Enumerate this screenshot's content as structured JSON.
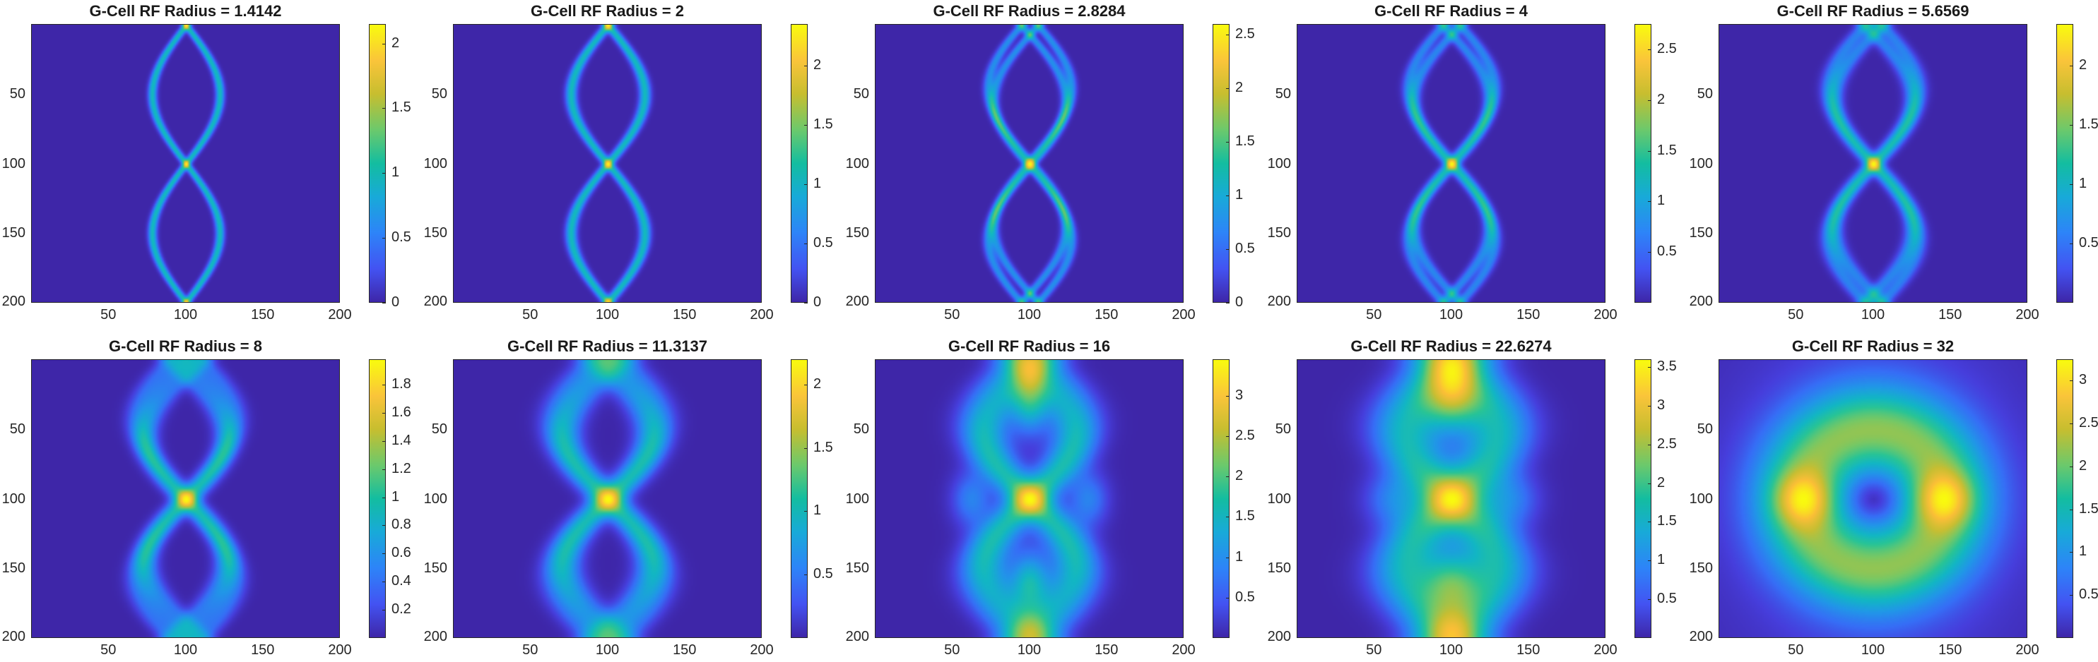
{
  "chart_data": [
    {
      "type": "heatmap",
      "title": "G-Cell RF Radius = 1.4142",
      "xticks": [
        "50",
        "100",
        "150",
        "200"
      ],
      "yticks": [
        "50",
        "100",
        "150",
        "200"
      ],
      "xlim": [
        0,
        200
      ],
      "ylim": [
        0,
        200
      ],
      "y_reversed": true,
      "colormap": "parula",
      "colorbar_ticks": [
        "0",
        "0.5",
        "1",
        "1.5",
        "2"
      ],
      "clim": [
        0,
        2.15
      ],
      "structure": "two-crossing-wave",
      "nwaves": 1,
      "amplitude": 22,
      "blur": 2.0
    },
    {
      "type": "heatmap",
      "title": "G-Cell RF Radius = 2",
      "xticks": [
        "50",
        "100",
        "150",
        "200"
      ],
      "yticks": [
        "50",
        "100",
        "150",
        "200"
      ],
      "xlim": [
        0,
        200
      ],
      "ylim": [
        0,
        200
      ],
      "y_reversed": true,
      "colormap": "parula",
      "colorbar_ticks": [
        "0",
        "0.5",
        "1",
        "1.5",
        "2"
      ],
      "clim": [
        0,
        2.35
      ],
      "structure": "two-crossing-wave",
      "nwaves": 1,
      "amplitude": 24,
      "blur": 2.6
    },
    {
      "type": "heatmap",
      "title": "G-Cell RF Radius = 2.8284",
      "xticks": [
        "50",
        "100",
        "150",
        "200"
      ],
      "yticks": [
        "50",
        "100",
        "150",
        "200"
      ],
      "xlim": [
        0,
        200
      ],
      "ylim": [
        0,
        200
      ],
      "y_reversed": true,
      "colormap": "parula",
      "colorbar_ticks": [
        "0",
        "0.5",
        "1",
        "1.5",
        "2",
        "2.5"
      ],
      "clim": [
        0,
        2.6
      ],
      "structure": "double-wave",
      "nwaves": 2,
      "amplitude": 25,
      "blur": 2.4
    },
    {
      "type": "heatmap",
      "title": "G-Cell RF Radius = 4",
      "xticks": [
        "50",
        "100",
        "150",
        "200"
      ],
      "yticks": [
        "50",
        "100",
        "150",
        "200"
      ],
      "xlim": [
        0,
        200
      ],
      "ylim": [
        0,
        200
      ],
      "y_reversed": true,
      "colormap": "parula",
      "colorbar_ticks": [
        "0.5",
        "1",
        "1.5",
        "2",
        "2.5"
      ],
      "clim": [
        0,
        2.75
      ],
      "structure": "double-wave",
      "nwaves": 2,
      "amplitude": 26,
      "blur": 3.0
    },
    {
      "type": "heatmap",
      "title": "G-Cell RF Radius = 5.6569",
      "xticks": [
        "50",
        "100",
        "150",
        "200"
      ],
      "yticks": [
        "50",
        "100",
        "150",
        "200"
      ],
      "xlim": [
        0,
        200
      ],
      "ylim": [
        0,
        200
      ],
      "y_reversed": true,
      "colormap": "parula",
      "colorbar_ticks": [
        "0.5",
        "1",
        "1.5",
        "2"
      ],
      "clim": [
        0,
        2.35
      ],
      "structure": "double-wave",
      "nwaves": 2,
      "amplitude": 27,
      "blur": 4.0
    },
    {
      "type": "heatmap",
      "title": "G-Cell RF Radius = 8",
      "xticks": [
        "50",
        "100",
        "150",
        "200"
      ],
      "yticks": [
        "50",
        "100",
        "150",
        "200"
      ],
      "xlim": [
        0,
        200
      ],
      "ylim": [
        0,
        200
      ],
      "y_reversed": true,
      "colormap": "parula",
      "colorbar_ticks": [
        "0.2",
        "0.4",
        "0.6",
        "0.8",
        "1",
        "1.2",
        "1.4",
        "1.6",
        "1.8"
      ],
      "clim": [
        0,
        1.98
      ],
      "structure": "triple-wave",
      "nwaves": 3,
      "amplitude": 28,
      "blur": 5.5
    },
    {
      "type": "heatmap",
      "title": "G-Cell RF Radius = 11.3137",
      "xticks": [
        "50",
        "100",
        "150",
        "200"
      ],
      "yticks": [
        "50",
        "100",
        "150",
        "200"
      ],
      "xlim": [
        0,
        200
      ],
      "ylim": [
        0,
        200
      ],
      "y_reversed": true,
      "colormap": "parula",
      "colorbar_ticks": [
        "0.5",
        "1",
        "1.5",
        "2"
      ],
      "clim": [
        0,
        2.2
      ],
      "structure": "triple-wave",
      "nwaves": 3,
      "amplitude": 30,
      "blur": 8.0
    },
    {
      "type": "heatmap",
      "title": "G-Cell RF Radius = 16",
      "xticks": [
        "50",
        "100",
        "150",
        "200"
      ],
      "yticks": [
        "50",
        "100",
        "150",
        "200"
      ],
      "xlim": [
        0,
        200
      ],
      "ylim": [
        0,
        200
      ],
      "y_reversed": true,
      "colormap": "parula",
      "colorbar_ticks": [
        "0.5",
        "1",
        "1.5",
        "2",
        "2.5",
        "3"
      ],
      "clim": [
        0,
        3.45
      ],
      "structure": "blobs",
      "nwaves": 3,
      "amplitude": 30,
      "blur": 11.0
    },
    {
      "type": "heatmap",
      "title": "G-Cell RF Radius = 22.6274",
      "xticks": [
        "50",
        "100",
        "150",
        "200"
      ],
      "yticks": [
        "50",
        "100",
        "150",
        "200"
      ],
      "xlim": [
        0,
        200
      ],
      "ylim": [
        0,
        200
      ],
      "y_reversed": true,
      "colormap": "parula",
      "colorbar_ticks": [
        "0.5",
        "1",
        "1.5",
        "2",
        "2.5",
        "3",
        "3.5"
      ],
      "clim": [
        0,
        3.6
      ],
      "structure": "blobs-wide",
      "nwaves": 3,
      "amplitude": 30,
      "blur": 16.0
    },
    {
      "type": "heatmap",
      "title": "G-Cell RF Radius = 32",
      "xticks": [
        "50",
        "100",
        "150",
        "200"
      ],
      "yticks": [
        "50",
        "100",
        "150",
        "200"
      ],
      "xlim": [
        0,
        200
      ],
      "ylim": [
        0,
        200
      ],
      "y_reversed": true,
      "colormap": "parula",
      "colorbar_ticks": [
        "0.5",
        "1",
        "1.5",
        "2",
        "2.5",
        "3"
      ],
      "clim": [
        0,
        3.25
      ],
      "structure": "ring",
      "nwaves": 3,
      "amplitude": 30,
      "blur": 22.0
    }
  ]
}
